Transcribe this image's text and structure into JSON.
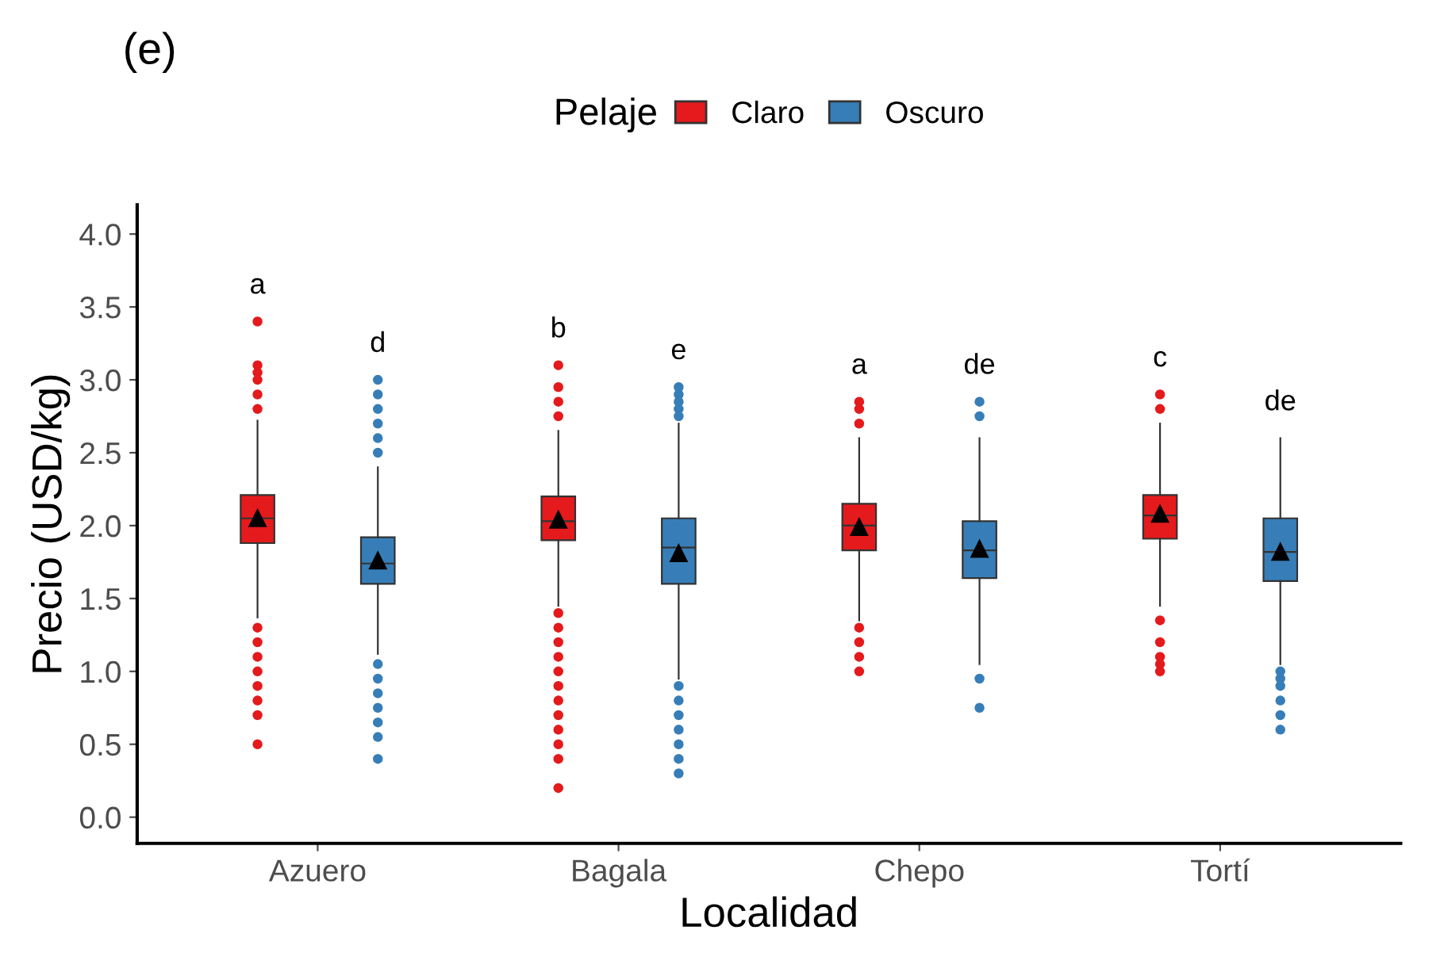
{
  "chart_data": {
    "type": "box",
    "title": "(e)",
    "xlabel": "Localidad",
    "ylabel": "Precio (USD/kg)",
    "legend_title": "Pelaje",
    "legend": "top",
    "categories": [
      "Azuero",
      "Bagala",
      "Chepo",
      "Tortí"
    ],
    "ylim": [
      -0.18,
      4.2
    ],
    "yticks": [
      {
        "value": 0,
        "label": "0.0"
      },
      {
        "value": 0.5,
        "label": "0.5"
      },
      {
        "value": 1,
        "label": "1.0"
      },
      {
        "value": 1.5,
        "label": "1.5"
      },
      {
        "value": 2,
        "label": "2.0"
      },
      {
        "value": 2.5,
        "label": "2.5"
      },
      {
        "value": 3,
        "label": "3.0"
      },
      {
        "value": 3.5,
        "label": "3.5"
      },
      {
        "value": 4,
        "label": "4.0"
      }
    ],
    "series": [
      {
        "name": "Claro",
        "color": "#e41a1c",
        "value_labels": [
          "a",
          "b",
          "a",
          "c"
        ],
        "boxes": [
          {
            "low": 1.37,
            "q1": 1.88,
            "median": 2.05,
            "q3": 2.21,
            "high": 2.72,
            "mean": 2.05,
            "outliers": [
              2.8,
              2.9,
              3.0,
              3.05,
              3.1,
              3.4,
              1.3,
              1.2,
              1.1,
              1.0,
              0.9,
              0.8,
              0.7,
              0.5
            ]
          },
          {
            "low": 1.45,
            "q1": 1.9,
            "median": 2.03,
            "q3": 2.2,
            "high": 2.65,
            "mean": 2.04,
            "outliers": [
              2.75,
              2.85,
              2.95,
              3.1,
              1.4,
              1.3,
              1.2,
              1.1,
              1.0,
              0.9,
              0.8,
              0.7,
              0.6,
              0.5,
              0.4,
              0.2
            ]
          },
          {
            "low": 1.35,
            "q1": 1.83,
            "median": 2.0,
            "q3": 2.15,
            "high": 2.6,
            "mean": 1.99,
            "outliers": [
              2.7,
              2.8,
              2.85,
              1.3,
              1.2,
              1.1,
              1.0
            ]
          },
          {
            "low": 1.45,
            "q1": 1.91,
            "median": 2.07,
            "q3": 2.21,
            "high": 2.7,
            "mean": 2.08,
            "outliers": [
              2.8,
              2.9,
              1.35,
              1.2,
              1.1,
              1.05,
              1.0
            ]
          }
        ]
      },
      {
        "name": "Oscuro",
        "color": "#377eb8",
        "value_labels": [
          "d",
          "e",
          "de",
          "de"
        ],
        "boxes": [
          {
            "low": 1.12,
            "q1": 1.6,
            "median": 1.74,
            "q3": 1.92,
            "high": 2.4,
            "mean": 1.76,
            "outliers": [
              2.5,
              2.6,
              2.7,
              2.8,
              2.9,
              3.0,
              1.05,
              0.95,
              0.85,
              0.75,
              0.65,
              0.55,
              0.4
            ]
          },
          {
            "low": 0.95,
            "q1": 1.6,
            "median": 1.85,
            "q3": 2.05,
            "high": 2.7,
            "mean": 1.81,
            "outliers": [
              2.75,
              2.8,
              2.85,
              2.9,
              2.95,
              0.9,
              0.8,
              0.7,
              0.6,
              0.5,
              0.4,
              0.3
            ]
          },
          {
            "low": 1.05,
            "q1": 1.64,
            "median": 1.83,
            "q3": 2.03,
            "high": 2.6,
            "mean": 1.84,
            "outliers": [
              2.75,
              2.85,
              0.95,
              0.75
            ]
          },
          {
            "low": 1.05,
            "q1": 1.62,
            "median": 1.82,
            "q3": 2.05,
            "high": 2.6,
            "mean": 1.82,
            "outliers": [
              1.0,
              0.95,
              0.9,
              0.8,
              0.7,
              0.6
            ]
          }
        ]
      }
    ]
  }
}
